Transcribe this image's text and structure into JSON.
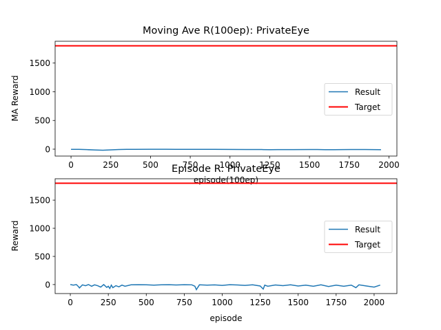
{
  "chart_data": [
    {
      "type": "line",
      "title": "Moving Ave R(100ep): PrivateEye",
      "xlabel": "episode(100ep)",
      "ylabel": "MA Reward",
      "xlim": [
        -100,
        2050
      ],
      "ylim": [
        -120,
        1880
      ],
      "xticks": [
        0,
        250,
        500,
        750,
        1000,
        1250,
        1500,
        1750,
        2000
      ],
      "yticks": [
        0,
        500,
        1000,
        1500
      ],
      "grid": false,
      "legend": "center-right",
      "series": [
        {
          "name": "Result",
          "color": "#1f77b4",
          "x": [
            0,
            50,
            100,
            150,
            200,
            250,
            300,
            350,
            400,
            500,
            600,
            700,
            800,
            900,
            1000,
            1100,
            1200,
            1250,
            1300,
            1400,
            1500,
            1550,
            1600,
            1650,
            1700,
            1800,
            1850,
            1900,
            1950
          ],
          "values": [
            -3,
            -4,
            -8,
            -14,
            -18,
            -12,
            -6,
            -4,
            -3,
            -2,
            -2,
            -3,
            -3,
            -4,
            -5,
            -6,
            -7,
            -9,
            -8,
            -8,
            -6,
            -7,
            -9,
            -10,
            -8,
            -6,
            -6,
            -8,
            -10
          ]
        },
        {
          "name": "Target",
          "color": "#ff0000",
          "x": [
            -100,
            2050
          ],
          "values": [
            1800,
            1800
          ]
        }
      ]
    },
    {
      "type": "line",
      "title": "Episode R: PrivateEye",
      "xlabel": "episode",
      "ylabel": "Reward",
      "xlim": [
        -100,
        2150
      ],
      "ylim": [
        -160,
        1880
      ],
      "xticks": [
        0,
        250,
        500,
        750,
        1000,
        1250,
        1500,
        1750,
        2000
      ],
      "yticks": [
        0,
        500,
        1000,
        1500
      ],
      "grid": false,
      "legend": "center-right",
      "series": [
        {
          "name": "Result",
          "color": "#1f77b4",
          "x": [
            0,
            20,
            40,
            55,
            60,
            80,
            100,
            120,
            140,
            160,
            180,
            200,
            220,
            240,
            250,
            260,
            270,
            280,
            300,
            320,
            340,
            360,
            400,
            450,
            500,
            550,
            600,
            650,
            700,
            750,
            800,
            820,
            830,
            850,
            900,
            950,
            1000,
            1050,
            1100,
            1150,
            1200,
            1250,
            1270,
            1280,
            1300,
            1350,
            1400,
            1450,
            1500,
            1550,
            1600,
            1650,
            1700,
            1750,
            1800,
            1850,
            1880,
            1900,
            1950,
            2000,
            2040
          ],
          "values": [
            0,
            -10,
            0,
            -40,
            -60,
            -5,
            -20,
            0,
            -30,
            -5,
            -20,
            -45,
            0,
            -50,
            -30,
            -70,
            -10,
            -55,
            -20,
            -40,
            -10,
            -30,
            -5,
            -3,
            -5,
            -10,
            -4,
            -3,
            -8,
            -2,
            -5,
            -30,
            -90,
            -5,
            -10,
            -6,
            -15,
            -3,
            -8,
            -15,
            -5,
            -25,
            -80,
            -10,
            -30,
            -8,
            -20,
            -5,
            -25,
            -10,
            -30,
            -5,
            -35,
            -10,
            -30,
            -10,
            -55,
            -5,
            -25,
            -45,
            -10
          ]
        },
        {
          "name": "Target",
          "color": "#ff0000",
          "x": [
            -100,
            2150
          ],
          "values": [
            1800,
            1800
          ]
        }
      ]
    }
  ]
}
